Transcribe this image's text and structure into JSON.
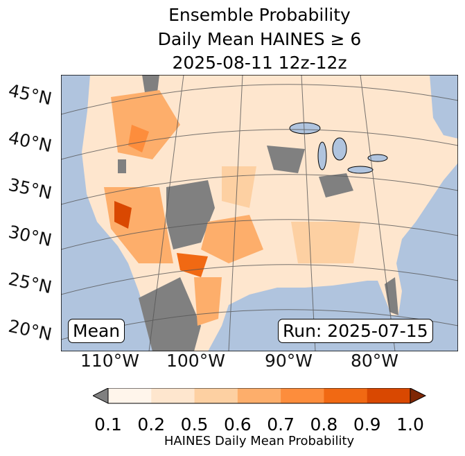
{
  "title": {
    "line1": "Ensemble Probability",
    "line2": "Daily Mean HAINES ≥ 6",
    "line3": "2025-08-11 12z-12z"
  },
  "map": {
    "lat_labels": [
      "45°N",
      "40°N",
      "35°N",
      "30°N",
      "25°N",
      "20°N"
    ],
    "lon_labels": [
      "110°W",
      "100°W",
      "90°W",
      "80°W"
    ],
    "mean_label": "Mean",
    "run_label": "Run: 2025-07-15",
    "colors": {
      "ocean": "#b0c4de",
      "below": "#808080",
      "bins": [
        "#fff5eb",
        "#fee6ce",
        "#fdd0a2",
        "#fdae6b",
        "#fd8d3c",
        "#f16913",
        "#d94801"
      ],
      "over": "#7f2704"
    }
  },
  "colorbar": {
    "ticks": [
      "0.1",
      "0.2",
      "0.5",
      "0.6",
      "0.7",
      "0.8",
      "0.9",
      "1.0"
    ],
    "label": "HAINES Daily Mean Probability"
  }
}
